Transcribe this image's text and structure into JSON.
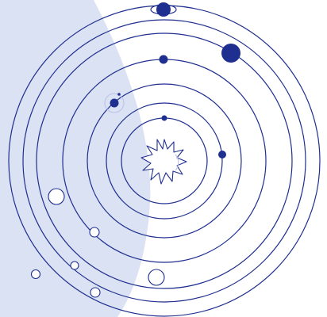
{
  "palette": {
    "background": "#ffffff",
    "shadow": "#dbe2f3",
    "orbit": "#1f2f8f",
    "planet": "#1f2f8f"
  },
  "orbit_count": 7,
  "planets": [
    {
      "name": "planet-1",
      "icon": "small-dot"
    },
    {
      "name": "planet-2",
      "icon": "small-dot"
    },
    {
      "name": "planet-3",
      "icon": "earth-with-moon"
    },
    {
      "name": "planet-4",
      "icon": "small-dot"
    },
    {
      "name": "planet-5",
      "icon": "large-dot"
    },
    {
      "name": "planet-6",
      "icon": "ringed-planet"
    }
  ],
  "center_icon": "sun-icon"
}
